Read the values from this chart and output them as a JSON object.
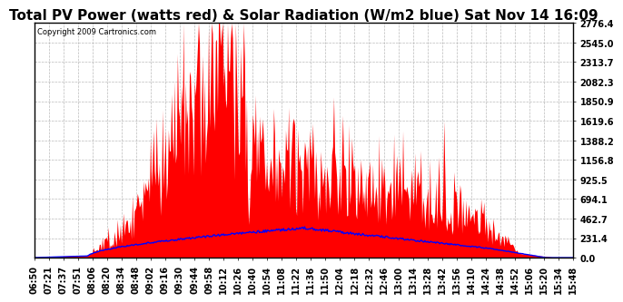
{
  "title": "Total PV Power (watts red) & Solar Radiation (W/m2 blue) Sat Nov 14 16:09",
  "copyright_text": "Copyright 2009 Cartronics.com",
  "background_color": "#ffffff",
  "plot_bg_color": "#ffffff",
  "ytick_labels": [
    "0.0",
    "231.4",
    "462.7",
    "694.1",
    "925.5",
    "1156.8",
    "1388.2",
    "1619.6",
    "1850.9",
    "2082.3",
    "2313.7",
    "2545.0",
    "2776.4"
  ],
  "ytick_values": [
    0.0,
    231.4,
    462.7,
    694.1,
    925.5,
    1156.8,
    1388.2,
    1619.6,
    1850.9,
    2082.3,
    2313.7,
    2545.0,
    2776.4
  ],
  "ymax": 2776.4,
  "xticklabels": [
    "06:50",
    "07:21",
    "07:37",
    "07:51",
    "08:06",
    "08:20",
    "08:34",
    "08:48",
    "09:02",
    "09:16",
    "09:30",
    "09:44",
    "09:58",
    "10:12",
    "10:26",
    "10:40",
    "10:54",
    "11:08",
    "11:22",
    "11:36",
    "11:50",
    "12:04",
    "12:18",
    "12:32",
    "12:46",
    "13:00",
    "13:14",
    "13:28",
    "13:42",
    "13:56",
    "14:10",
    "14:24",
    "14:38",
    "14:52",
    "15:06",
    "15:20",
    "15:34",
    "15:48"
  ],
  "n_xticks": 38,
  "grid_color": "#aaaaaa",
  "pv_color": "red",
  "solar_color": "blue",
  "title_fontsize": 11,
  "tick_fontsize": 7,
  "copyright_fontsize": 6
}
